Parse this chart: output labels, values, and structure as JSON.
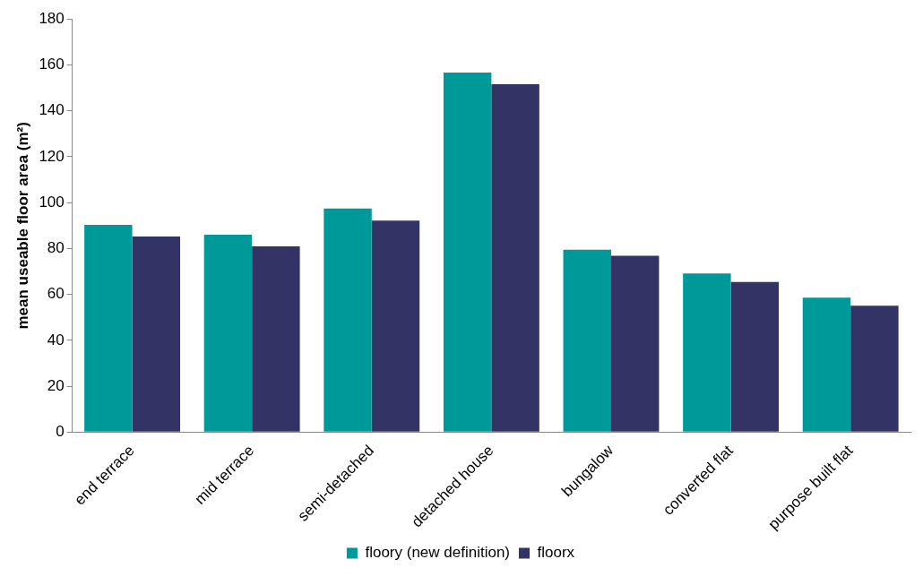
{
  "chart_data": {
    "type": "bar",
    "ylabel": "mean useable floor area (m²)",
    "categories": [
      "end terrace",
      "mid terrace",
      "semi-detached",
      "detached house",
      "bungalow",
      "converted flat",
      "purpose built flat"
    ],
    "series": [
      {
        "name": "floory (new definition)",
        "color": "#009999",
        "values": [
          90.3,
          86,
          97.4,
          156.7,
          79.5,
          69.1,
          58.6
        ]
      },
      {
        "name": "floorx",
        "color": "#333366",
        "values": [
          85.2,
          80.9,
          92.2,
          151.6,
          76.8,
          65.4,
          55.1
        ]
      }
    ],
    "ylim": [
      0,
      180
    ],
    "yticks": [
      0,
      20,
      40,
      60,
      80,
      100,
      120,
      140,
      160,
      180
    ],
    "grid": false,
    "legend": "bottom"
  }
}
